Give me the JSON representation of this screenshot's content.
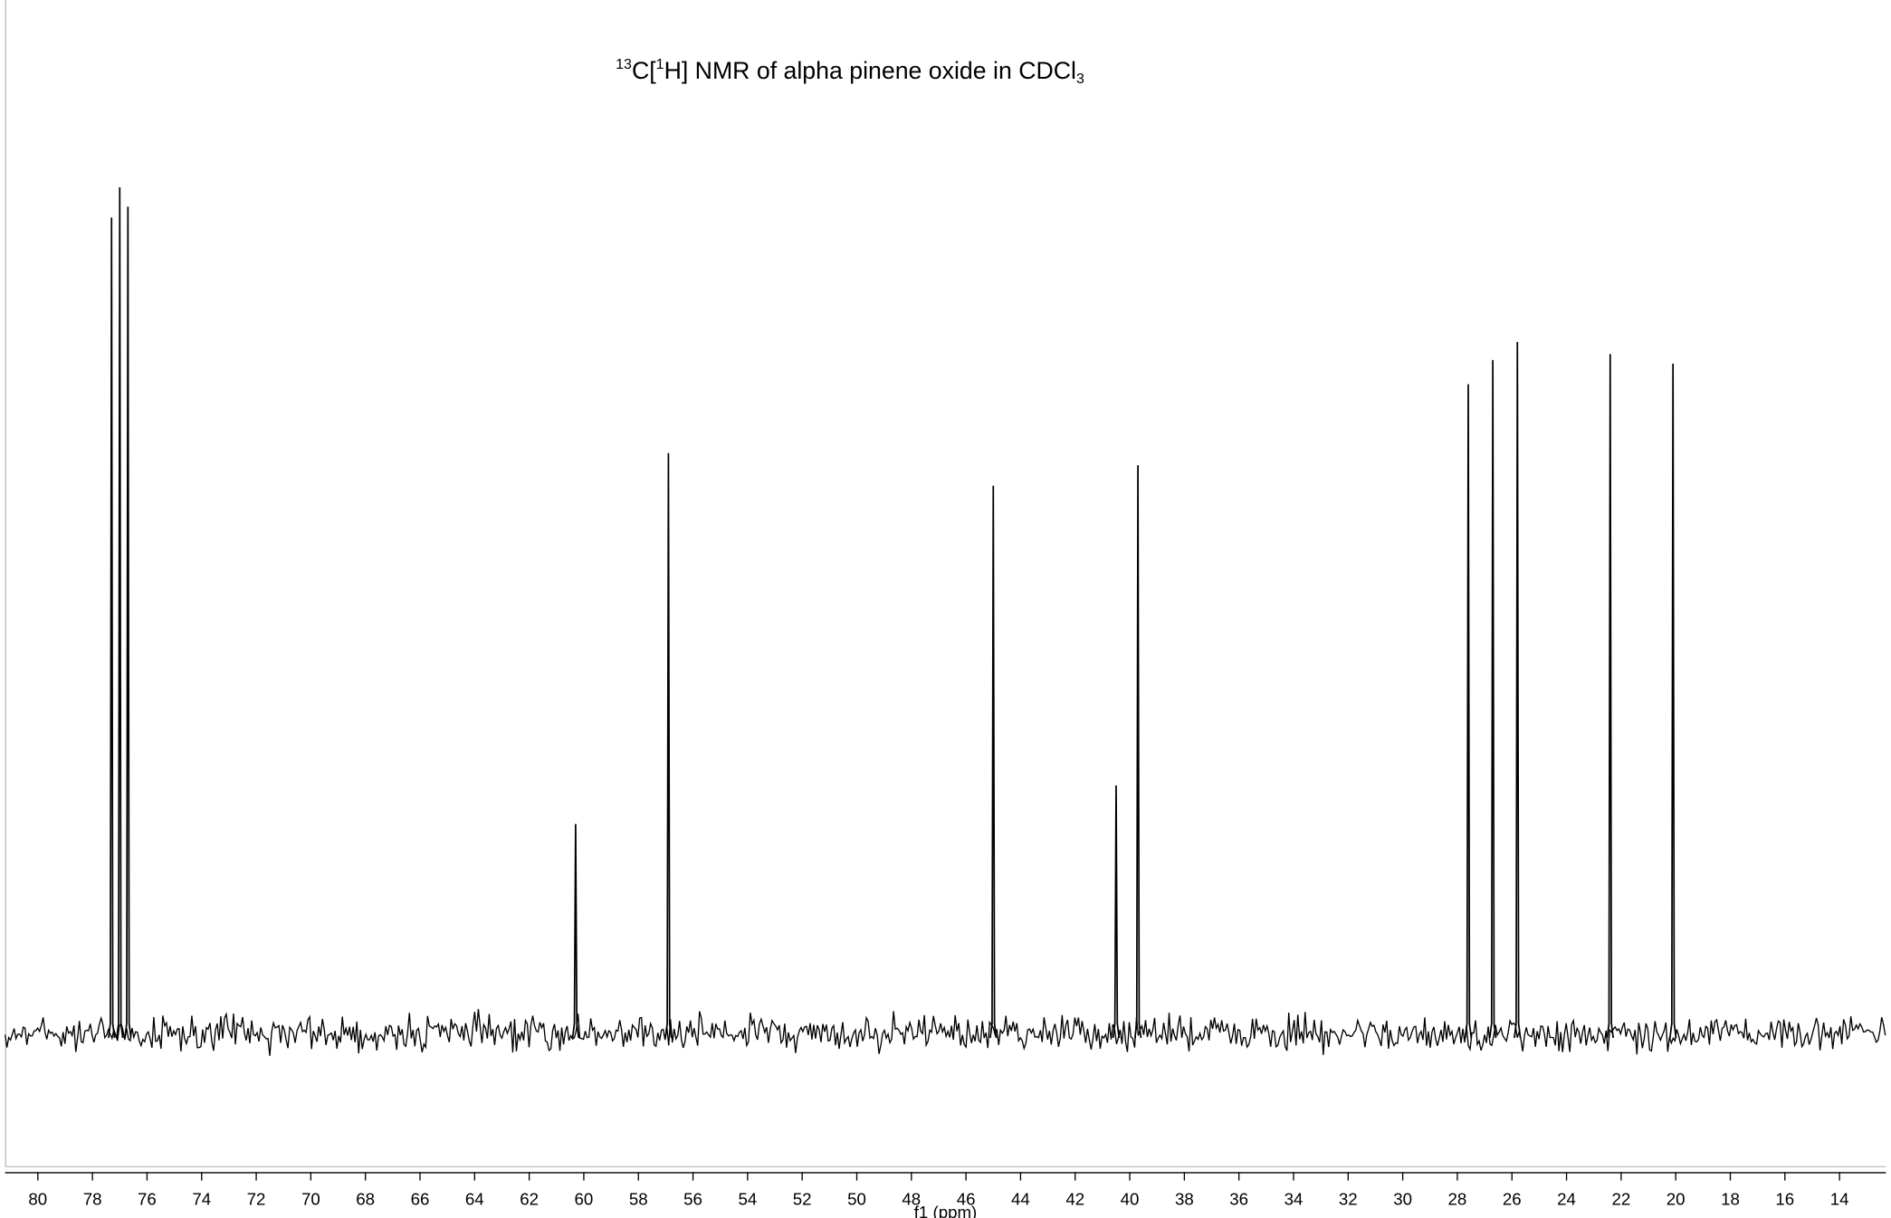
{
  "chart_data": {
    "type": "spectrum",
    "title_parts": [
      "13",
      "C[",
      "1",
      "H] NMR of alpha pinene oxide in CDCl",
      "3"
    ],
    "xlabel": "f1 (ppm)",
    "x": [
      77.3,
      77.0,
      76.7,
      60.3,
      56.9,
      45.0,
      40.5,
      39.7,
      27.6,
      26.7,
      25.8,
      22.4,
      20.1
    ],
    "values": [
      675,
      700,
      684,
      173,
      480,
      453,
      205,
      470,
      537,
      557,
      572,
      562,
      554
    ],
    "color": "#000000",
    "xlim": [
      81.2,
      12.3
    ],
    "xticks": [
      80,
      78,
      76,
      74,
      72,
      70,
      68,
      66,
      64,
      62,
      60,
      58,
      56,
      54,
      52,
      50,
      48,
      46,
      44,
      42,
      40,
      38,
      36,
      34,
      32,
      30,
      28,
      26,
      24,
      22,
      20,
      18,
      16,
      14
    ],
    "ylim": [
      -110,
      855
    ]
  }
}
